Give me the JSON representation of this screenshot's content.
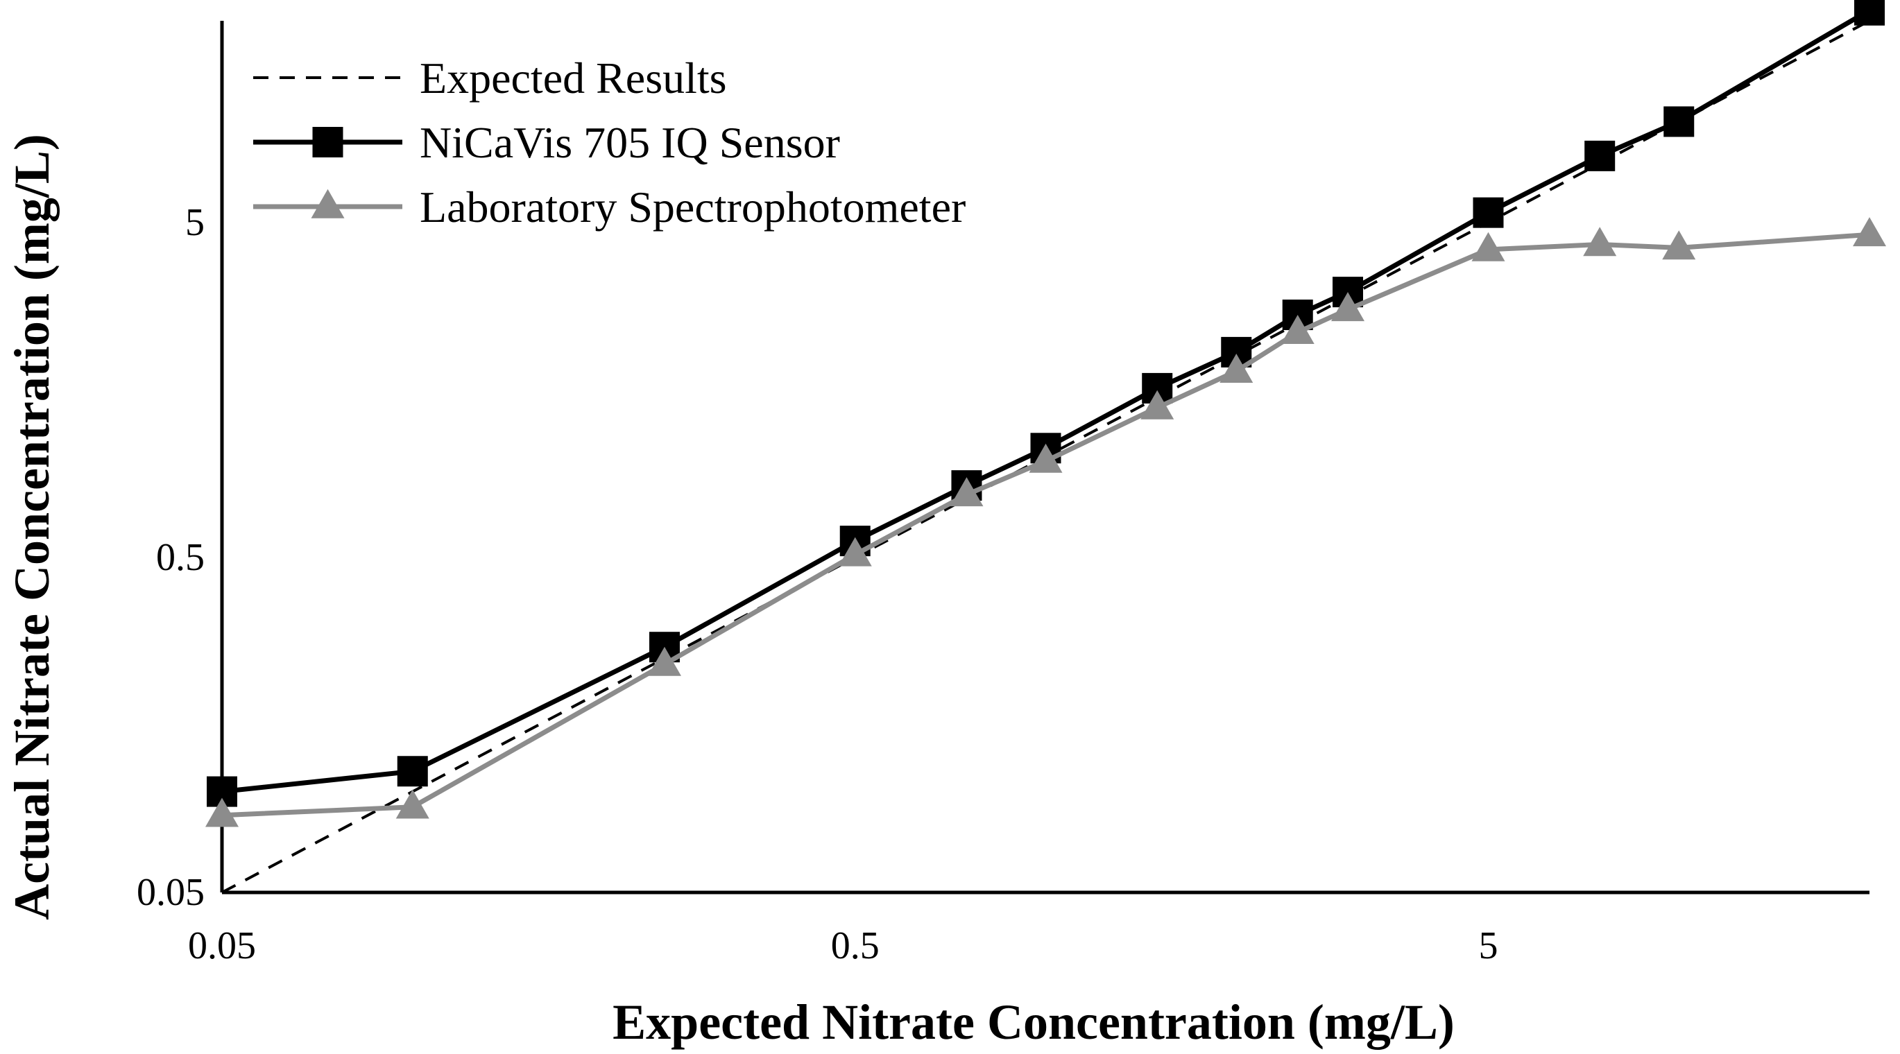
{
  "chart_data": {
    "type": "line",
    "title": "",
    "xlabel": "Expected Nitrate Concentration (mg/L)",
    "ylabel": "Actual Nitrate Concentration (mg/L)",
    "x_scale": "log",
    "y_scale": "log",
    "xlim": [
      0.05,
      20
    ],
    "ylim": [
      0.05,
      20
    ],
    "x_ticks": [
      0.05,
      0.5,
      5
    ],
    "x_tick_labels": [
      "0.05",
      "0.5",
      "5"
    ],
    "y_ticks": [
      0.05,
      0.5,
      5
    ],
    "y_tick_labels": [
      "0.05",
      "0.5",
      "5"
    ],
    "grid": false,
    "legend_position": "top-left",
    "series": [
      {
        "name": "Expected Results",
        "style": "dashed",
        "marker": "none",
        "color": "#000000",
        "x": [
          0.05,
          20
        ],
        "y": [
          0.05,
          20
        ]
      },
      {
        "name": "NiCaVis 705 IQ Sensor",
        "style": "solid",
        "marker": "square",
        "color": "#000000",
        "x": [
          0.05,
          0.1,
          0.25,
          0.5,
          0.75,
          1.0,
          1.5,
          2.0,
          2.5,
          3.0,
          5.0,
          7.5,
          10.0,
          20.0
        ],
        "y": [
          0.1,
          0.115,
          0.27,
          0.56,
          0.82,
          1.06,
          1.6,
          2.05,
          2.65,
          3.1,
          5.35,
          7.9,
          10.0,
          21.5
        ]
      },
      {
        "name": "Laboratory Spectrophotometer",
        "style": "solid",
        "marker": "triangle",
        "color": "#8c8c8c",
        "x": [
          0.05,
          0.1,
          0.25,
          0.5,
          0.75,
          1.0,
          1.5,
          2.0,
          2.5,
          3.0,
          5.0,
          7.5,
          10.0,
          20.0
        ],
        "y": [
          0.085,
          0.09,
          0.24,
          0.51,
          0.77,
          0.97,
          1.4,
          1.8,
          2.35,
          2.75,
          4.15,
          4.3,
          4.2,
          4.6
        ]
      }
    ]
  }
}
